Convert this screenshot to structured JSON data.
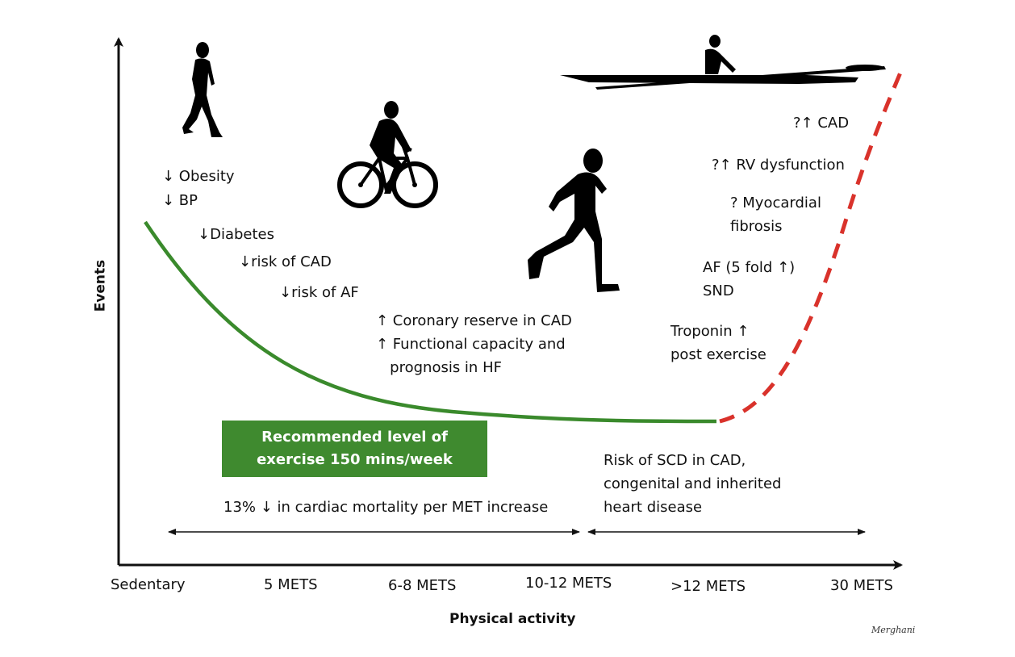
{
  "axes": {
    "y_title": "Events",
    "x_title": "Physical activity",
    "x_ticks": [
      "Sedentary",
      "5 METS",
      "6-8 METS",
      "10-12 METS",
      ">12 METS",
      "30 METS"
    ]
  },
  "benefits": [
    "↓ Obesity",
    "↓ BP",
    "↓Diabetes",
    "↓risk of CAD",
    "↓risk of AF"
  ],
  "hf_effects": [
    "↑ Coronary reserve in CAD",
    "↑ Functional capacity and",
    "   prognosis in HF"
  ],
  "risks": {
    "cad": "?↑ CAD",
    "rv": "?↑ RV dysfunction",
    "fibrosis_1": "? Myocardial",
    "fibrosis_2": "fibrosis",
    "af": "AF (5 fold ↑)",
    "snd": "SND",
    "troponin_1": "Troponin ↑",
    "troponin_2": "post exercise"
  },
  "recommendation": {
    "line1": "Recommended level of",
    "line2": "exercise 150 mins/week"
  },
  "mortality_note": "13% ↓ in cardiac mortality per MET increase",
  "scd_note": [
    "Risk of SCD in CAD,",
    "congenital and inherited",
    "heart disease"
  ],
  "signature": "Merghani",
  "colors": {
    "benefit_curve": "#3a8a2c",
    "risk_curve": "#d9322b",
    "recommendation_box": "#3f8a2f",
    "silhouette": "#000000"
  }
}
